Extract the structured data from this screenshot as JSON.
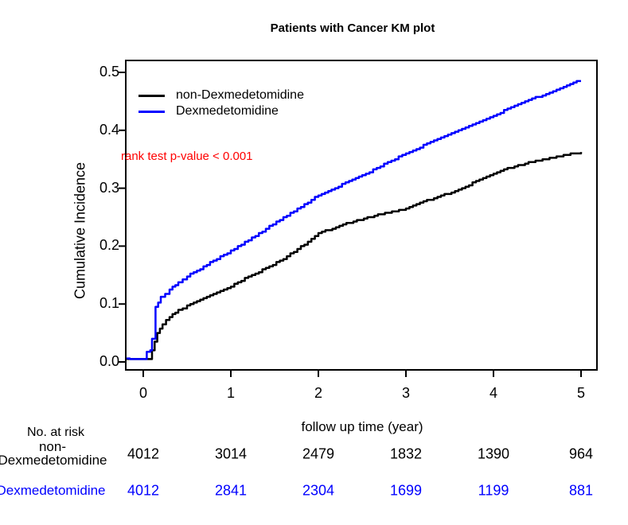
{
  "chart_data": {
    "type": "line",
    "title": "Patients with Cancer KM plot",
    "xlabel": "follow up time (year)",
    "ylabel": "Cumulative Incidence",
    "annotation": "rank test p-value < 0.001",
    "annotation_color": "#FF0000",
    "xlim": [
      -0.2,
      5.2
    ],
    "ylim": [
      0.0,
      0.5
    ],
    "x_ticks": [
      0,
      1,
      2,
      3,
      4,
      5
    ],
    "y_ticks": [
      0.0,
      0.1,
      0.2,
      0.3,
      0.4,
      0.5
    ],
    "grid": false,
    "legend_position": "top-left-inside",
    "series": [
      {
        "name": "non-Dexmedetomidine",
        "color": "#000000",
        "points": [
          [
            -0.19,
            0.005
          ],
          [
            0.05,
            0.005
          ],
          [
            0.1,
            0.02
          ],
          [
            0.16,
            0.05
          ],
          [
            0.22,
            0.066
          ],
          [
            0.3,
            0.078
          ],
          [
            0.4,
            0.089
          ],
          [
            0.5,
            0.098
          ],
          [
            0.65,
            0.108
          ],
          [
            0.8,
            0.118
          ],
          [
            1.0,
            0.131
          ],
          [
            1.2,
            0.147
          ],
          [
            1.4,
            0.162
          ],
          [
            1.6,
            0.178
          ],
          [
            1.8,
            0.199
          ],
          [
            2.0,
            0.222
          ],
          [
            2.2,
            0.233
          ],
          [
            2.4,
            0.243
          ],
          [
            2.6,
            0.251
          ],
          [
            2.8,
            0.258
          ],
          [
            3.0,
            0.264
          ],
          [
            3.2,
            0.277
          ],
          [
            3.4,
            0.287
          ],
          [
            3.6,
            0.297
          ],
          [
            3.8,
            0.312
          ],
          [
            4.0,
            0.326
          ],
          [
            4.2,
            0.336
          ],
          [
            4.4,
            0.344
          ],
          [
            4.6,
            0.35
          ],
          [
            4.8,
            0.357
          ],
          [
            5.0,
            0.362
          ]
        ]
      },
      {
        "name": "Dexmedetomidine",
        "color": "#0000FF",
        "points": [
          [
            -0.19,
            0.006
          ],
          [
            0.03,
            0.006
          ],
          [
            0.04,
            0.018
          ],
          [
            0.08,
            0.02
          ],
          [
            0.1,
            0.04
          ],
          [
            0.14,
            0.095
          ],
          [
            0.2,
            0.112
          ],
          [
            0.3,
            0.125
          ],
          [
            0.4,
            0.137
          ],
          [
            0.5,
            0.148
          ],
          [
            0.65,
            0.161
          ],
          [
            0.8,
            0.175
          ],
          [
            1.0,
            0.192
          ],
          [
            1.2,
            0.211
          ],
          [
            1.4,
            0.23
          ],
          [
            1.6,
            0.249
          ],
          [
            1.8,
            0.268
          ],
          [
            2.0,
            0.288
          ],
          [
            2.15,
            0.298
          ],
          [
            2.35,
            0.312
          ],
          [
            2.5,
            0.322
          ],
          [
            2.75,
            0.342
          ],
          [
            3.0,
            0.36
          ],
          [
            3.2,
            0.374
          ],
          [
            3.4,
            0.388
          ],
          [
            3.6,
            0.401
          ],
          [
            3.8,
            0.413
          ],
          [
            4.0,
            0.425
          ],
          [
            4.2,
            0.44
          ],
          [
            4.4,
            0.452
          ],
          [
            4.6,
            0.463
          ],
          [
            4.8,
            0.475
          ],
          [
            4.95,
            0.484
          ],
          [
            5.0,
            0.486
          ]
        ]
      }
    ]
  },
  "risk_table": {
    "header": "No. at risk",
    "times": [
      0,
      1,
      2,
      3,
      4,
      5
    ],
    "rows": [
      {
        "label_lines": [
          "non-",
          "Dexmedetomidine"
        ],
        "color": "#000000",
        "values": [
          4012,
          3014,
          2479,
          1832,
          1390,
          964
        ]
      },
      {
        "label_lines": [
          "Dexmedetomidine"
        ],
        "color": "#0000FF",
        "values": [
          4012,
          2841,
          2304,
          1699,
          1199,
          881
        ]
      }
    ]
  }
}
